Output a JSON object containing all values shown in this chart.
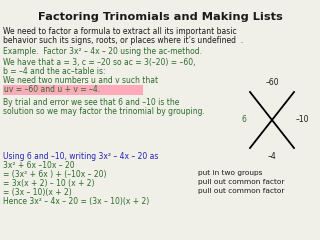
{
  "title": "Factoring Trinomials and Making Lists",
  "bg_color": "#f0f0e8",
  "text_color_green": "#2d6b2d",
  "text_color_black": "#1a1a1a",
  "text_color_blue": "#2222bb",
  "highlight_color": "#ffaabb",
  "line1": "We need to factor a formula to extract all its important basic",
  "line2": "behavior such its signs, roots, or places where it’s undefined  .",
  "line3": "Example.  Factor 3x² – 4x – 20 using the ac-method.",
  "line4": "We have that a = 3, c = –20 so ac = 3(–20) = –60,",
  "line5": "b = –4 and the ac–table is:",
  "line6": "We need two numbers u and v such that",
  "line7_highlight": "uv = –60 and u + v = –4.",
  "line8": "By trial and error we see that 6 and –10 is the",
  "line9": "solution so we may factor the trinomial by grouping.",
  "line10": "Using 6 and –10, writing 3x² – 4x – 20 as",
  "line11": "3x² + 6x –10x – 20",
  "line12": "= (3x² + 6x ) + (–10x – 20)",
  "line12b": "put in two groups",
  "line13": "= 3x(x + 2) – 10 (x + 2)",
  "line13b": "pull out common factor",
  "line14": "= (3x – 10)(x + 2)",
  "line14b": "pull out common factor",
  "line15": "Hence 3x² – 4x – 20 = (3x – 10)(x + 2)",
  "xdiagram_top_label": "–60",
  "xdiagram_left_label": "6",
  "xdiagram_right_label": "–10",
  "xdiagram_bottom_label": "–4"
}
